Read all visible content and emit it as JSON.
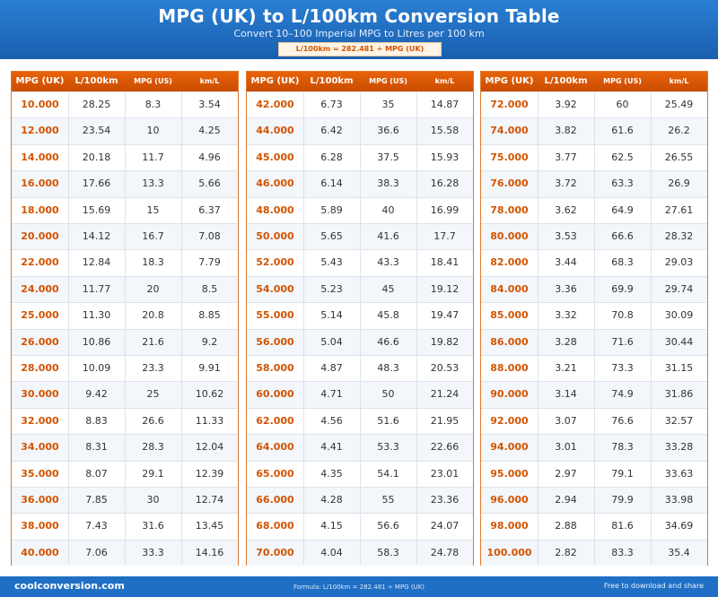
{
  "header": {
    "title": "MPG (UK) to L/100km Conversion Table",
    "subtitle": "Convert 10–100 Imperial MPG to Litres per 100 km",
    "formula": "L/100km = 282.481 ÷ MPG (UK)"
  },
  "columns": [
    "MPG (UK)",
    "L/100km",
    "MPG (US)",
    "km/L"
  ],
  "tables": [
    {
      "rows": [
        [
          "10.000",
          "28.25",
          "8.3",
          "3.54"
        ],
        [
          "12.000",
          "23.54",
          "10",
          "4.25"
        ],
        [
          "14.000",
          "20.18",
          "11.7",
          "4.96"
        ],
        [
          "16.000",
          "17.66",
          "13.3",
          "5.66"
        ],
        [
          "18.000",
          "15.69",
          "15",
          "6.37"
        ],
        [
          "20.000",
          "14.12",
          "16.7",
          "7.08"
        ],
        [
          "22.000",
          "12.84",
          "18.3",
          "7.79"
        ],
        [
          "24.000",
          "11.77",
          "20",
          "8.5"
        ],
        [
          "25.000",
          "11.30",
          "20.8",
          "8.85"
        ],
        [
          "26.000",
          "10.86",
          "21.6",
          "9.2"
        ],
        [
          "28.000",
          "10.09",
          "23.3",
          "9.91"
        ],
        [
          "30.000",
          "9.42",
          "25",
          "10.62"
        ],
        [
          "32.000",
          "8.83",
          "26.6",
          "11.33"
        ],
        [
          "34.000",
          "8.31",
          "28.3",
          "12.04"
        ],
        [
          "35.000",
          "8.07",
          "29.1",
          "12.39"
        ],
        [
          "36.000",
          "7.85",
          "30",
          "12.74"
        ],
        [
          "38.000",
          "7.43",
          "31.6",
          "13.45"
        ],
        [
          "40.000",
          "7.06",
          "33.3",
          "14.16"
        ]
      ]
    },
    {
      "rows": [
        [
          "42.000",
          "6.73",
          "35",
          "14.87"
        ],
        [
          "44.000",
          "6.42",
          "36.6",
          "15.58"
        ],
        [
          "45.000",
          "6.28",
          "37.5",
          "15.93"
        ],
        [
          "46.000",
          "6.14",
          "38.3",
          "16.28"
        ],
        [
          "48.000",
          "5.89",
          "40",
          "16.99"
        ],
        [
          "50.000",
          "5.65",
          "41.6",
          "17.7"
        ],
        [
          "52.000",
          "5.43",
          "43.3",
          "18.41"
        ],
        [
          "54.000",
          "5.23",
          "45",
          "19.12"
        ],
        [
          "55.000",
          "5.14",
          "45.8",
          "19.47"
        ],
        [
          "56.000",
          "5.04",
          "46.6",
          "19.82"
        ],
        [
          "58.000",
          "4.87",
          "48.3",
          "20.53"
        ],
        [
          "60.000",
          "4.71",
          "50",
          "21.24"
        ],
        [
          "62.000",
          "4.56",
          "51.6",
          "21.95"
        ],
        [
          "64.000",
          "4.41",
          "53.3",
          "22.66"
        ],
        [
          "65.000",
          "4.35",
          "54.1",
          "23.01"
        ],
        [
          "66.000",
          "4.28",
          "55",
          "23.36"
        ],
        [
          "68.000",
          "4.15",
          "56.6",
          "24.07"
        ],
        [
          "70.000",
          "4.04",
          "58.3",
          "24.78"
        ]
      ]
    },
    {
      "rows": [
        [
          "72.000",
          "3.92",
          "60",
          "25.49"
        ],
        [
          "74.000",
          "3.82",
          "61.6",
          "26.2"
        ],
        [
          "75.000",
          "3.77",
          "62.5",
          "26.55"
        ],
        [
          "76.000",
          "3.72",
          "63.3",
          "26.9"
        ],
        [
          "78.000",
          "3.62",
          "64.9",
          "27.61"
        ],
        [
          "80.000",
          "3.53",
          "66.6",
          "28.32"
        ],
        [
          "82.000",
          "3.44",
          "68.3",
          "29.03"
        ],
        [
          "84.000",
          "3.36",
          "69.9",
          "29.74"
        ],
        [
          "85.000",
          "3.32",
          "70.8",
          "30.09"
        ],
        [
          "86.000",
          "3.28",
          "71.6",
          "30.44"
        ],
        [
          "88.000",
          "3.21",
          "73.3",
          "31.15"
        ],
        [
          "90.000",
          "3.14",
          "74.9",
          "31.86"
        ],
        [
          "92.000",
          "3.07",
          "76.6",
          "32.57"
        ],
        [
          "94.000",
          "3.01",
          "78.3",
          "33.28"
        ],
        [
          "95.000",
          "2.97",
          "79.1",
          "33.63"
        ],
        [
          "96.000",
          "2.94",
          "79.9",
          "33.98"
        ],
        [
          "98.000",
          "2.88",
          "81.6",
          "34.69"
        ],
        [
          "100.000",
          "2.82",
          "83.3",
          "35.4"
        ]
      ]
    }
  ],
  "footer": {
    "brand": "coolconversion.com",
    "formula": "Formula: L/100km = 282.481 ÷ MPG (UK)",
    "note": "Free to download and share"
  },
  "colors": {
    "header_blue": "#1f6fc4",
    "accent_orange": "#d35400",
    "table_border": "#e07a2f"
  }
}
